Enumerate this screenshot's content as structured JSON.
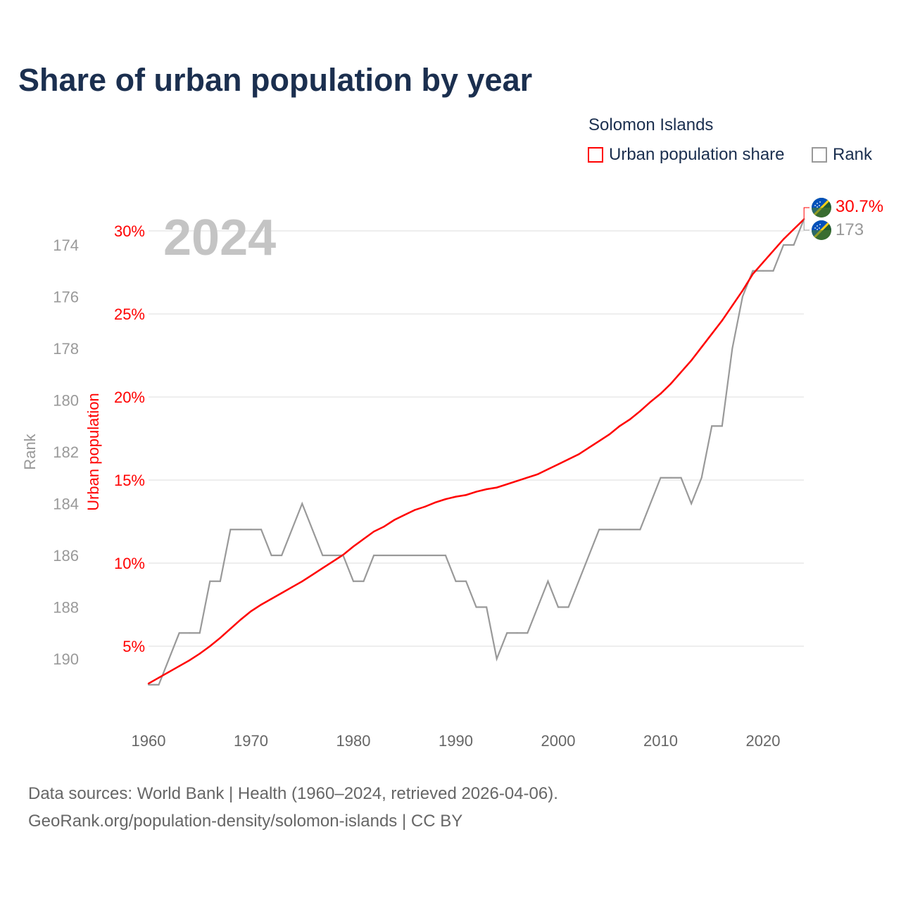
{
  "title": "Share of urban population by year",
  "legend": {
    "country": "Solomon Islands",
    "items": [
      {
        "label": "Urban population share",
        "color": "#ff0000"
      },
      {
        "label": "Rank",
        "color": "#999999"
      }
    ]
  },
  "year_watermark": "2024",
  "footer": {
    "line1": "Data sources: World Bank | Health (1960–2024, retrieved 2026-04-06).",
    "line2": "GeoRank.org/population-density/solomon-islands | CC BY"
  },
  "chart_data": {
    "type": "line",
    "title": "Share of urban population by year",
    "xlabel": "",
    "ylabel_left": "Rank",
    "ylabel_right": "Urban population",
    "x_ticks": [
      "1960",
      "1970",
      "1980",
      "1990",
      "2000",
      "2010",
      "2020"
    ],
    "x_range": [
      1960,
      2024
    ],
    "urban_ticks": [
      "5%",
      "10%",
      "15%",
      "20%",
      "25%",
      "30%"
    ],
    "urban_range": [
      0,
      30
    ],
    "rank_ticks": [
      "174",
      "176",
      "178",
      "180",
      "182",
      "184",
      "186",
      "188",
      "190"
    ],
    "rank_range": [
      173,
      191
    ],
    "grid": true,
    "x": [
      1960,
      1961,
      1962,
      1963,
      1964,
      1965,
      1966,
      1967,
      1968,
      1969,
      1970,
      1971,
      1972,
      1973,
      1974,
      1975,
      1976,
      1977,
      1978,
      1979,
      1980,
      1981,
      1982,
      1983,
      1984,
      1985,
      1986,
      1987,
      1988,
      1989,
      1990,
      1991,
      1992,
      1993,
      1994,
      1995,
      1996,
      1997,
      1998,
      1999,
      2000,
      2001,
      2002,
      2003,
      2004,
      2005,
      2006,
      2007,
      2008,
      2009,
      2010,
      2011,
      2012,
      2013,
      2014,
      2015,
      2016,
      2017,
      2018,
      2019,
      2020,
      2021,
      2022,
      2023,
      2024
    ],
    "series": [
      {
        "name": "Urban population share",
        "unit": "%",
        "color": "#ff0000",
        "values": [
          2.75,
          3.1,
          3.45,
          3.8,
          4.15,
          4.55,
          5.0,
          5.5,
          6.05,
          6.6,
          7.1,
          7.5,
          7.85,
          8.2,
          8.55,
          8.9,
          9.3,
          9.7,
          10.1,
          10.5,
          11.0,
          11.45,
          11.9,
          12.2,
          12.6,
          12.9,
          13.2,
          13.4,
          13.65,
          13.85,
          14.0,
          14.1,
          14.3,
          14.45,
          14.55,
          14.75,
          14.95,
          15.15,
          15.35,
          15.65,
          15.95,
          16.25,
          16.55,
          16.95,
          17.35,
          17.75,
          18.25,
          18.65,
          19.15,
          19.7,
          20.2,
          20.8,
          21.5,
          22.2,
          23.0,
          23.8,
          24.6,
          25.5,
          26.4,
          27.4,
          28.1,
          28.8,
          29.5,
          30.1,
          30.7
        ],
        "end_label": "30.7%"
      },
      {
        "name": "Rank",
        "color": "#999999",
        "values": [
          191,
          191,
          190,
          189,
          189,
          189,
          187,
          187,
          185,
          185,
          185,
          185,
          186,
          186,
          185,
          184,
          185,
          186,
          186,
          186,
          187,
          187,
          186,
          186,
          186,
          186,
          186,
          186,
          186,
          186,
          187,
          187,
          188,
          188,
          190,
          189,
          189,
          189,
          188,
          187,
          188,
          188,
          187,
          186,
          185,
          185,
          185,
          185,
          185,
          184,
          183,
          183,
          183,
          184,
          183,
          181,
          181,
          178,
          176,
          175,
          175,
          175,
          174,
          174,
          173
        ],
        "end_label": "173"
      }
    ],
    "legend_position": "top-right"
  }
}
